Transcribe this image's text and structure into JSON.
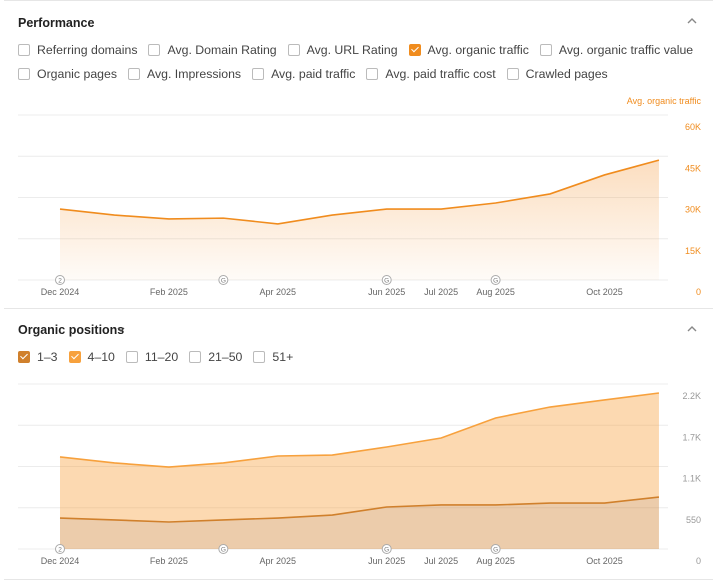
{
  "performance": {
    "title": "Performance",
    "metrics": [
      {
        "label": "Referring domains",
        "checked": false
      },
      {
        "label": "Avg. Domain Rating",
        "checked": false
      },
      {
        "label": "Avg. URL Rating",
        "checked": false
      },
      {
        "label": "Avg. organic traffic",
        "checked": true
      },
      {
        "label": "Avg. organic traffic value",
        "checked": false
      },
      {
        "label": "Organic pages",
        "checked": false
      },
      {
        "label": "Avg. Impressions",
        "checked": false
      },
      {
        "label": "Avg. paid traffic",
        "checked": false
      },
      {
        "label": "Avg. paid traffic cost",
        "checked": false
      },
      {
        "label": "Crawled pages",
        "checked": false
      }
    ],
    "chart_data": {
      "type": "area",
      "ylabel": "Avg. organic traffic",
      "color": "#f08c1e",
      "tick_color": "#f08c1e",
      "categories": [
        "Dec 2024",
        null,
        "Feb 2025",
        null,
        "Apr 2025",
        null,
        "Jun 2025",
        "Jul 2025",
        "Aug 2025",
        null,
        "Oct 2025",
        null
      ],
      "markers": [
        "2",
        null,
        null,
        "G",
        null,
        null,
        "G",
        null,
        "G",
        null,
        null,
        null
      ],
      "values": [
        25800,
        23600,
        22200,
        22500,
        20400,
        23600,
        25800,
        25800,
        28000,
        31300,
        38200,
        43600
      ],
      "ylim": [
        0,
        60000
      ],
      "yticks": [
        0,
        {
          "value": 15000,
          "label": "15K"
        },
        {
          "value": 30000,
          "label": "30K"
        },
        {
          "value": 45000,
          "label": "45K"
        },
        {
          "value": 60000,
          "label": "60K"
        }
      ],
      "grid": true
    }
  },
  "organic_positions": {
    "title": "Organic positions",
    "other_filters": [
      "11–20",
      "21–50",
      "51+"
    ],
    "chart_data": {
      "type": "stacked_area",
      "tick_color": "#999999",
      "categories": [
        "Dec 2024",
        null,
        "Feb 2025",
        null,
        "Apr 2025",
        null,
        "Jun 2025",
        "Jul 2025",
        "Aug 2025",
        null,
        "Oct 2025",
        null
      ],
      "markers": [
        "2",
        null,
        null,
        "G",
        null,
        null,
        "G",
        null,
        "G",
        null,
        null,
        null
      ],
      "series": [
        {
          "name": "1–3",
          "color": "#d0802c",
          "values": [
            413,
            387,
            360,
            387,
            413,
            453,
            560,
            587,
            587,
            613,
            613,
            693
          ]
        },
        {
          "name": "4–10",
          "color": "#f7a13d",
          "values": [
            814,
            760,
            733,
            760,
            827,
            800,
            800,
            893,
            1160,
            1280,
            1374,
            1387
          ]
        }
      ],
      "ylim": [
        0,
        2200
      ],
      "yticks": [
        0,
        550,
        {
          "value": 1100,
          "label": "1.1K"
        },
        {
          "value": 1650,
          "label": "1.7K"
        },
        {
          "value": 2200,
          "label": "2.2K"
        }
      ],
      "grid": true
    }
  }
}
